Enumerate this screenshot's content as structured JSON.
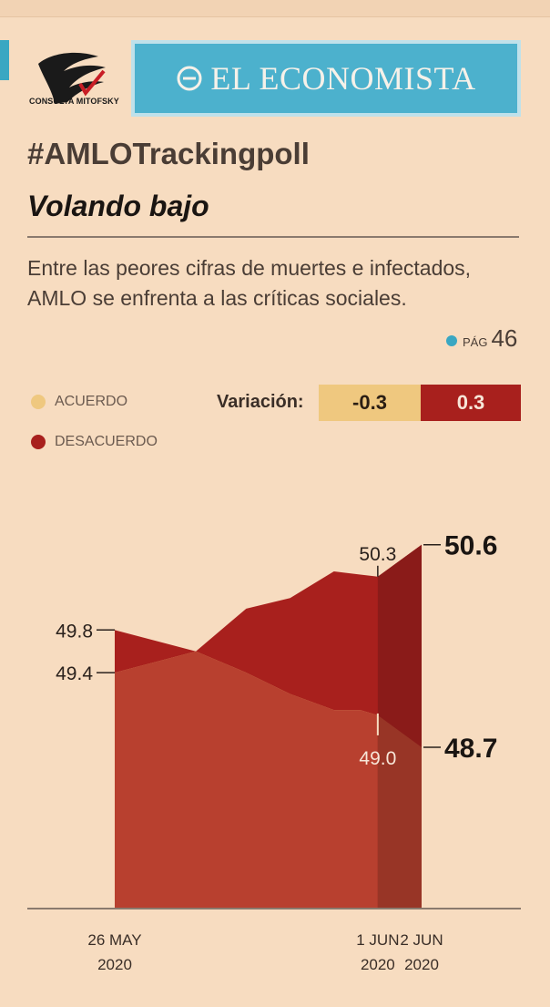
{
  "header": {
    "logo_text": "CONSULTA MITOFSKY",
    "brand": "EL ECONOMISTA",
    "hashtag": "#AMLOTrackingpoll",
    "subtitle": "Volando bajo",
    "description": "Entre las peores cifras de muertes e infectados, AMLO se enfrenta a las críticas sociales.",
    "page_ref_prefix": "PÁG",
    "page_ref_number": "46"
  },
  "colors": {
    "background": "#f7dcc0",
    "acuerdo": "#efc87f",
    "desacuerdo": "#a8201d",
    "desacuerdo_dark": "#8a1b19",
    "overlap": "#b8402f",
    "overlap_dark": "#983526",
    "brand_blue": "#4cb1cd"
  },
  "legend": {
    "acuerdo": "ACUERDO",
    "desacuerdo": "DESACUERDO"
  },
  "variation": {
    "label": "Variación:",
    "acuerdo_value": "-0.3",
    "desacuerdo_value": "0.3"
  },
  "chart_data": {
    "type": "area",
    "x_ticks": [
      {
        "day": 0,
        "label_line1": "26 MAY",
        "label_line2": "2020"
      },
      {
        "day": 6,
        "label_line1": "1 JUN",
        "label_line2": "2020"
      },
      {
        "day": 7,
        "label_line1": "2 JUN",
        "label_line2": "2020"
      }
    ],
    "x_domain": [
      0,
      7
    ],
    "series": [
      {
        "key": "acuerdo",
        "name": "ACUERDO",
        "points": [
          [
            0,
            49.4
          ],
          [
            1.85,
            49.6
          ],
          [
            3.0,
            49.4
          ],
          [
            4.0,
            49.2
          ],
          [
            5.0,
            49.05
          ],
          [
            5.6,
            49.05
          ],
          [
            6.0,
            49.0
          ],
          [
            7.0,
            48.7
          ]
        ]
      },
      {
        "key": "desacuerdo",
        "name": "DESACUERDO",
        "points": [
          [
            0,
            49.8
          ],
          [
            1.85,
            49.6
          ],
          [
            3.0,
            50.0
          ],
          [
            4.0,
            50.1
          ],
          [
            5.0,
            50.35
          ],
          [
            5.6,
            50.32
          ],
          [
            6.0,
            50.3
          ],
          [
            7.0,
            50.6
          ]
        ]
      }
    ],
    "labels": [
      {
        "text": "49.8",
        "series": "desacuerdo",
        "day": 0,
        "value": 49.8
      },
      {
        "text": "49.4",
        "series": "acuerdo",
        "day": 0,
        "value": 49.4
      },
      {
        "text": "50.3",
        "series": "desacuerdo",
        "day": 6,
        "value": 50.3
      },
      {
        "text": "49.0",
        "series": "acuerdo",
        "day": 6,
        "value": 49.0
      },
      {
        "text": "50.6",
        "series": "desacuerdo",
        "day": 7,
        "value": 50.6
      },
      {
        "text": "48.7",
        "series": "acuerdo",
        "day": 7,
        "value": 48.7
      }
    ]
  }
}
